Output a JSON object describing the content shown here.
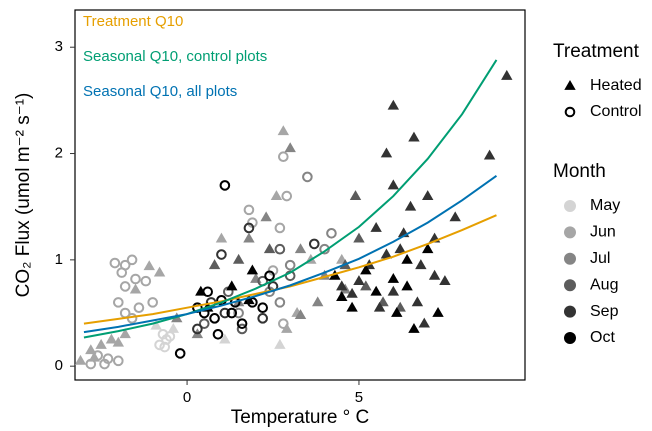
{
  "chart_data": {
    "type": "scatter",
    "xlabel": "Temperature ° C",
    "ylabel": "CO₂ Flux (umol m⁻² s⁻¹)",
    "xlim": [
      -3.26,
      9.83
    ],
    "ylim": [
      -0.13,
      3.35
    ],
    "xticks": [
      0,
      5
    ],
    "yticks": [
      0,
      1,
      2,
      3
    ],
    "grid": false,
    "x": [
      -3,
      -2,
      -1,
      0,
      1,
      2,
      3,
      4,
      5,
      6,
      7,
      8,
      9
    ],
    "series": [
      {
        "name": "Treatment Q10",
        "color": "#E69F00",
        "values": [
          0.4,
          0.445,
          0.49,
          0.55,
          0.61,
          0.68,
          0.75,
          0.84,
          0.93,
          1.03,
          1.15,
          1.28,
          1.42
        ]
      },
      {
        "name": "Seasonal Q10, control plots",
        "color": "#009E73",
        "values": [
          0.27,
          0.33,
          0.4,
          0.49,
          0.6,
          0.73,
          0.88,
          1.08,
          1.31,
          1.6,
          1.95,
          2.37,
          2.88
        ]
      },
      {
        "name": "Seasonal Q10, all plots",
        "color": "#0072B2",
        "values": [
          0.32,
          0.37,
          0.43,
          0.49,
          0.57,
          0.66,
          0.76,
          0.88,
          1.01,
          1.17,
          1.35,
          1.56,
          1.79
        ]
      }
    ],
    "legend": {
      "shape_title": "Treatment",
      "shapes": [
        "Heated",
        "Control"
      ],
      "color_title": "Month"
    },
    "points": [
      {
        "month": "May",
        "color": "#d4d4d4",
        "groups": [
          {
            "x": [
              -0.4,
              1.1,
              2.7,
              -0.9
            ],
            "y": [
              0.35,
              0.25,
              0.2,
              0.38
            ]
          },
          {
            "x": [
              -0.7,
              -0.6,
              -0.8,
              -0.65,
              -0.5
            ],
            "y": [
              0.3,
              0.25,
              0.2,
              0.18,
              0.28
            ]
          }
        ]
      },
      {
        "month": "Jun",
        "color": "#a6a6a6",
        "groups": [
          {
            "x": [
              -3.1,
              -2.8,
              -2.5,
              -2.2,
              -2.0,
              -1.8,
              -2.7,
              -1.1,
              -1.5,
              -0.8,
              2.8,
              2.6,
              3.6,
              1.0,
              3.2,
              2.9,
              4.5
            ],
            "y": [
              0.05,
              0.15,
              0.2,
              0.25,
              0.22,
              0.3,
              0.08,
              0.94,
              0.72,
              0.88,
              2.21,
              1.6,
              1.0,
              1.2,
              0.5,
              0.35,
              1.0
            ]
          },
          {
            "x": [
              -2.1,
              -1.8,
              -1.6,
              -1.9,
              -1.5,
              -1.2,
              -1.8,
              -2.0,
              -1.4,
              -1.0,
              -1.8,
              -1.6,
              -2.6,
              -2.3,
              -2.0,
              -2.8,
              -2.4,
              2.8,
              2.9,
              1.8,
              1.9,
              2.7,
              2.5,
              2.8
            ],
            "y": [
              0.97,
              0.95,
              1.0,
              0.88,
              0.82,
              0.8,
              0.75,
              0.6,
              0.55,
              0.6,
              0.5,
              0.45,
              0.1,
              0.07,
              0.05,
              0.02,
              0.02,
              1.97,
              1.6,
              1.47,
              1.35,
              1.3,
              0.9,
              0.4
            ]
          }
        ]
      },
      {
        "month": "Jul",
        "color": "#858585",
        "groups": [
          {
            "x": [
              3.0,
              2.3,
              1.8,
              3.3,
              4.0,
              4.6,
              3.8,
              3.3,
              1.5,
              2.0,
              0.3,
              -0.3
            ],
            "y": [
              2.05,
              1.4,
              1.2,
              1.1,
              0.85,
              0.72,
              0.6,
              0.48,
              0.6,
              0.82,
              0.3,
              0.45
            ]
          },
          {
            "x": [
              3.5,
              4.2,
              4.0,
              3.0,
              2.4,
              1.5,
              2.7
            ],
            "y": [
              1.78,
              1.25,
              1.1,
              0.95,
              0.7,
              0.5,
              0.6
            ]
          }
        ]
      },
      {
        "month": "Aug",
        "color": "#5c5c5c",
        "groups": [
          {
            "x": [
              4.9,
              5.0,
              4.6,
              5.2,
              5.7,
              6.2,
              1.5,
              0.8,
              2.4
            ],
            "y": [
              1.6,
              1.2,
              0.95,
              0.75,
              0.6,
              0.55,
              1.0,
              0.95,
              1.1
            ]
          },
          {
            "x": [
              2.7,
              3.0,
              2.2,
              1.2,
              0.5,
              1.6
            ],
            "y": [
              1.1,
              0.85,
              0.8,
              0.7,
              0.4,
              0.35
            ]
          }
        ]
      },
      {
        "month": "Sep",
        "color": "#333333",
        "groups": [
          {
            "x": [
              6.0,
              5.8,
              6.6,
              6.0,
              6.5,
              7.0,
              6.3,
              7.2,
              5.8,
              5.3,
              6.8,
              7.5,
              5.0,
              4.5,
              6.0,
              6.7,
              7.8,
              8.8,
              9.3,
              5.5,
              6.2,
              4.8,
              5.6,
              6.9,
              7.2
            ],
            "y": [
              2.45,
              2.0,
              2.15,
              1.7,
              1.5,
              1.6,
              1.25,
              1.2,
              1.05,
              0.95,
              0.95,
              0.8,
              0.8,
              0.75,
              0.7,
              0.6,
              1.4,
              1.98,
              2.73,
              1.3,
              1.1,
              0.68,
              0.55,
              0.4,
              0.85
            ]
          },
          {
            "x": [
              1.0,
              1.8,
              2.5,
              3.7,
              0.7,
              0.3,
              1.1,
              2.2
            ],
            "y": [
              1.05,
              1.3,
              0.75,
              1.15,
              0.6,
              0.35,
              0.5,
              0.45
            ]
          }
        ]
      },
      {
        "month": "Oct",
        "color": "#000000",
        "groups": [
          {
            "x": [
              0.4,
              1.3,
              1.8,
              0.6,
              1.9,
              4.3,
              4.5,
              5.2,
              6.0,
              6.4,
              7.0,
              5.5,
              6.1,
              4.8,
              6.4,
              7.3,
              6.6
            ],
            "y": [
              0.7,
              0.75,
              0.62,
              0.55,
              0.9,
              0.85,
              0.65,
              0.9,
              0.82,
              1.0,
              1.1,
              0.7,
              0.5,
              0.55,
              0.75,
              0.5,
              0.35
            ]
          },
          {
            "x": [
              1.1,
              0.6,
              1.0,
              1.4,
              0.3,
              0.8,
              1.6,
              2.2,
              0.5,
              1.9,
              2.4,
              -0.2,
              0.9,
              1.3
            ],
            "y": [
              1.7,
              0.7,
              0.62,
              0.6,
              0.55,
              0.45,
              0.4,
              0.55,
              0.5,
              0.6,
              0.85,
              0.12,
              0.3,
              0.5
            ]
          }
        ]
      }
    ]
  }
}
